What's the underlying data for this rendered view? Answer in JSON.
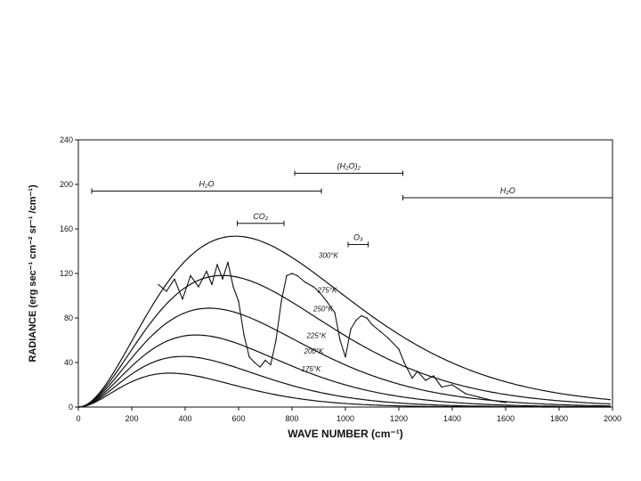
{
  "chart_data": {
    "type": "line",
    "xlabel": "WAVE NUMBER (cm⁻¹)",
    "ylabel": "RADIANCE (erg sec⁻¹ cm⁻² sr⁻¹ /cm⁻¹)",
    "xlim": [
      0,
      2000
    ],
    "ylim": [
      0,
      240
    ],
    "xticks": [
      0,
      200,
      400,
      600,
      800,
      1000,
      1200,
      1400,
      1600,
      1800,
      2000
    ],
    "yticks": [
      0,
      40,
      80,
      120,
      160,
      200,
      240
    ],
    "grid": false,
    "series": [
      {
        "name": "300°K",
        "temperature": 300
      },
      {
        "name": "275°K",
        "temperature": 275
      },
      {
        "name": "250°K",
        "temperature": 250
      },
      {
        "name": "225°K",
        "temperature": 225
      },
      {
        "name": "200°K",
        "temperature": 200
      },
      {
        "name": "175°K",
        "temperature": 175
      },
      {
        "x": [
          300,
          330,
          360,
          390,
          420,
          450,
          480,
          500,
          520,
          540,
          560,
          580,
          600,
          620,
          640,
          660,
          680,
          700,
          720,
          740,
          760,
          780,
          800,
          820,
          850,
          880,
          900,
          930,
          960,
          980,
          1000,
          1020,
          1040,
          1060,
          1080,
          1100,
          1130,
          1160,
          1200,
          1220,
          1250,
          1270,
          1300,
          1330,
          1360,
          1400,
          1450,
          1500,
          1550,
          1600
        ],
        "values": [
          110,
          104,
          115,
          97,
          118,
          108,
          122,
          110,
          128,
          115,
          130,
          108,
          95,
          65,
          45,
          40,
          36,
          42,
          38,
          60,
          95,
          118,
          120,
          118,
          112,
          108,
          104,
          95,
          85,
          60,
          45,
          70,
          78,
          82,
          80,
          74,
          68,
          62,
          52,
          40,
          26,
          32,
          24,
          28,
          18,
          20,
          12,
          9,
          6,
          4
        ]
      }
    ],
    "bands": [
      {
        "label": "H₂O",
        "x0": 50,
        "x1": 910,
        "y": 194
      },
      {
        "label": "(H₂O)₂",
        "x0": 810,
        "x1": 1215,
        "y": 210
      },
      {
        "label": "H₂O",
        "x0": 1215,
        "x1": 2000,
        "y": 188
      },
      {
        "label": "CO₂",
        "x0": 595,
        "x1": 770,
        "y": 165
      },
      {
        "label": "O₃",
        "x0": 1010,
        "x1": 1085,
        "y": 146
      }
    ]
  }
}
